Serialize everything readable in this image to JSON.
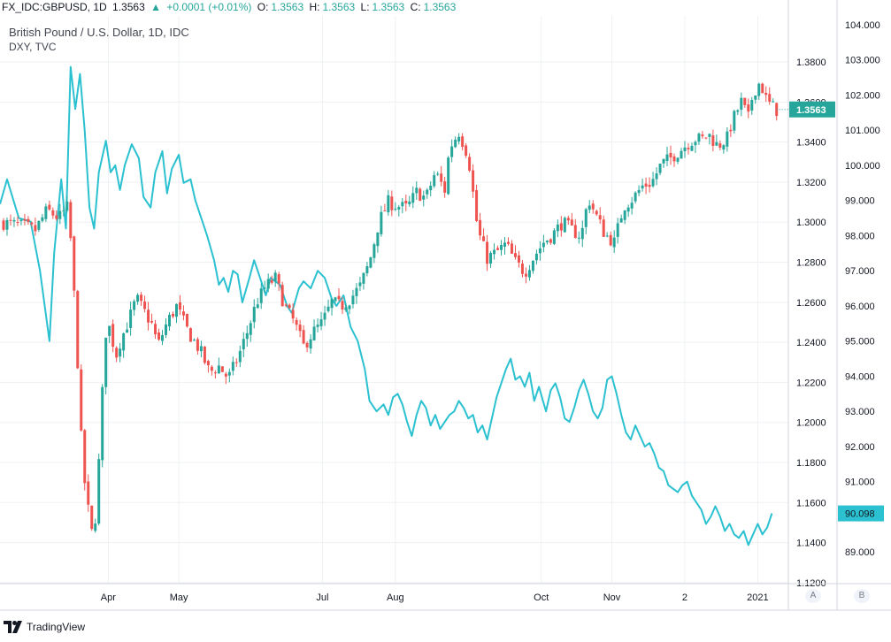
{
  "header": {
    "symbol": "FX_IDC:GBPUSD, 1D",
    "last": "1.3563",
    "change": "+0.0001 (+0.01%)",
    "o_label": "O:",
    "o": "1.3563",
    "h_label": "H:",
    "h": "1.3563",
    "l_label": "L:",
    "l": "1.3563",
    "c_label": "C:",
    "c": "1.3563"
  },
  "legend": {
    "main_series": "British Pound / U.S. Dollar, 1D, IDC",
    "overlay_series": "DXY, TVC"
  },
  "branding": {
    "logo_text": "TradingView"
  },
  "scale_buttons": {
    "a": "A",
    "b": "B"
  },
  "colors": {
    "up": "#26a69a",
    "down": "#ef5350",
    "dxy": "#2bc1d0",
    "grid": "#eef0f3",
    "axis_text": "#131722",
    "last_tag": "#26a69a",
    "dxy_tag": "#2bc1d0"
  },
  "chart_data": {
    "type": "candlestick+line",
    "x_ticks": [
      "Apr",
      "May",
      "Jul",
      "Aug",
      "Oct",
      "Nov",
      "2",
      "2021"
    ],
    "x_tick_days": [
      41,
      71,
      132,
      163,
      225,
      255,
      286,
      317
    ],
    "x_range_days": [
      -5,
      330
    ],
    "left_scale_gbpusd": {
      "ticks": [
        "1.3800",
        "1.3600",
        "1.3400",
        "1.3200",
        "1.3000",
        "1.2800",
        "1.2600",
        "1.2400",
        "1.2200",
        "1.2000",
        "1.1800",
        "1.1600",
        "1.1400",
        "1.1200"
      ],
      "range": [
        1.1195,
        1.403
      ],
      "last_tag": "1.3563"
    },
    "right_scale_dxy": {
      "ticks": [
        "104.000",
        "103.000",
        "102.000",
        "101.000",
        "100.000",
        "99.000",
        "98.000",
        "97.000",
        "96.000",
        "95.000",
        "94.000",
        "93.000",
        "92.000",
        "91.000",
        "90.000",
        "89.000"
      ],
      "range": [
        88.1,
        104.25
      ],
      "last_tag": "90.098"
    },
    "gbpusd_close_anchors": [
      [
        -5,
        1.3
      ],
      [
        5,
        1.298
      ],
      [
        10,
        1.296
      ],
      [
        15,
        1.306
      ],
      [
        20,
        1.302
      ],
      [
        24,
        1.308
      ],
      [
        26,
        1.275
      ],
      [
        28,
        1.23
      ],
      [
        30,
        1.18
      ],
      [
        32,
        1.16
      ],
      [
        34,
        1.145
      ],
      [
        36,
        1.155
      ],
      [
        38,
        1.205
      ],
      [
        40,
        1.245
      ],
      [
        42,
        1.248
      ],
      [
        44,
        1.232
      ],
      [
        46,
        1.24
      ],
      [
        50,
        1.252
      ],
      [
        53,
        1.262
      ],
      [
        56,
        1.256
      ],
      [
        60,
        1.248
      ],
      [
        62,
        1.238
      ],
      [
        66,
        1.25
      ],
      [
        70,
        1.258
      ],
      [
        75,
        1.245
      ],
      [
        80,
        1.236
      ],
      [
        84,
        1.225
      ],
      [
        88,
        1.228
      ],
      [
        92,
        1.222
      ],
      [
        96,
        1.232
      ],
      [
        100,
        1.245
      ],
      [
        104,
        1.26
      ],
      [
        108,
        1.268
      ],
      [
        112,
        1.272
      ],
      [
        116,
        1.258
      ],
      [
        120,
        1.25
      ],
      [
        124,
        1.238
      ],
      [
        128,
        1.245
      ],
      [
        132,
        1.25
      ],
      [
        136,
        1.26
      ],
      [
        140,
        1.258
      ],
      [
        144,
        1.262
      ],
      [
        148,
        1.268
      ],
      [
        152,
        1.28
      ],
      [
        156,
        1.3
      ],
      [
        160,
        1.31
      ],
      [
        164,
        1.308
      ],
      [
        168,
        1.307
      ],
      [
        172,
        1.315
      ],
      [
        176,
        1.312
      ],
      [
        180,
        1.325
      ],
      [
        184,
        1.316
      ],
      [
        186,
        1.337
      ],
      [
        190,
        1.345
      ],
      [
        194,
        1.333
      ],
      [
        198,
        1.296
      ],
      [
        202,
        1.282
      ],
      [
        206,
        1.285
      ],
      [
        210,
        1.289
      ],
      [
        214,
        1.28
      ],
      [
        218,
        1.275
      ],
      [
        222,
        1.283
      ],
      [
        226,
        1.29
      ],
      [
        230,
        1.294
      ],
      [
        234,
        1.3
      ],
      [
        238,
        1.296
      ],
      [
        242,
        1.293
      ],
      [
        245,
        1.312
      ],
      [
        248,
        1.304
      ],
      [
        252,
        1.294
      ],
      [
        256,
        1.29
      ],
      [
        260,
        1.308
      ],
      [
        264,
        1.312
      ],
      [
        268,
        1.318
      ],
      [
        272,
        1.32
      ],
      [
        276,
        1.329
      ],
      [
        280,
        1.332
      ],
      [
        284,
        1.336
      ],
      [
        288,
        1.34
      ],
      [
        291,
        1.342
      ],
      [
        293,
        1.341
      ],
      [
        296,
        1.344
      ],
      [
        300,
        1.338
      ],
      [
        304,
        1.342
      ],
      [
        306,
        1.35
      ],
      [
        310,
        1.36
      ],
      [
        313,
        1.352
      ],
      [
        315,
        1.365
      ],
      [
        318,
        1.37
      ],
      [
        321,
        1.36
      ],
      [
        325,
        1.356
      ]
    ],
    "dxy_anchors": [
      [
        -5,
        98.9
      ],
      [
        -2,
        99.6
      ],
      [
        3,
        98.5
      ],
      [
        8,
        98.4
      ],
      [
        12,
        97.0
      ],
      [
        16,
        95.0
      ],
      [
        18,
        97.5
      ],
      [
        21,
        99.6
      ],
      [
        23,
        98.2
      ],
      [
        25,
        102.8
      ],
      [
        27,
        101.6
      ],
      [
        29,
        102.6
      ],
      [
        31,
        101.0
      ],
      [
        33,
        98.8
      ],
      [
        35,
        98.2
      ],
      [
        37,
        99.8
      ],
      [
        40,
        100.7
      ],
      [
        42,
        99.8
      ],
      [
        44,
        100.0
      ],
      [
        46,
        99.3
      ],
      [
        48,
        100.0
      ],
      [
        51,
        100.6
      ],
      [
        54,
        100.2
      ],
      [
        56,
        99.1
      ],
      [
        59,
        98.8
      ],
      [
        61,
        99.8
      ],
      [
        64,
        100.4
      ],
      [
        66,
        99.2
      ],
      [
        68,
        99.9
      ],
      [
        71,
        100.3
      ],
      [
        73,
        99.5
      ],
      [
        76,
        99.6
      ],
      [
        78,
        99.0
      ],
      [
        80,
        98.6
      ],
      [
        83,
        98.0
      ],
      [
        86,
        97.3
      ],
      [
        88,
        96.6
      ],
      [
        90,
        96.8
      ],
      [
        92,
        96.4
      ],
      [
        94,
        97.0
      ],
      [
        96,
        96.9
      ],
      [
        98,
        96.1
      ],
      [
        101,
        96.8
      ],
      [
        103,
        97.3
      ],
      [
        105,
        96.9
      ],
      [
        108,
        96.3
      ],
      [
        110,
        96.8
      ],
      [
        114,
        96.6
      ],
      [
        117,
        96.0
      ],
      [
        119,
        95.8
      ],
      [
        122,
        96.5
      ],
      [
        124,
        96.7
      ],
      [
        127,
        96.5
      ],
      [
        130,
        97.0
      ],
      [
        133,
        96.8
      ],
      [
        136,
        96.2
      ],
      [
        138,
        96.0
      ],
      [
        141,
        96.3
      ],
      [
        144,
        95.4
      ],
      [
        147,
        95.0
      ],
      [
        150,
        94.2
      ],
      [
        152,
        93.3
      ],
      [
        155,
        93.0
      ],
      [
        158,
        93.2
      ],
      [
        160,
        92.9
      ],
      [
        162,
        93.4
      ],
      [
        164,
        93.5
      ],
      [
        166,
        93.2
      ],
      [
        168,
        92.7
      ],
      [
        170,
        92.3
      ],
      [
        172,
        92.9
      ],
      [
        174,
        93.3
      ],
      [
        176,
        93.1
      ],
      [
        178,
        92.6
      ],
      [
        180,
        92.9
      ],
      [
        182,
        92.5
      ],
      [
        184,
        92.7
      ],
      [
        186,
        92.9
      ],
      [
        188,
        93.0
      ],
      [
        190,
        93.3
      ],
      [
        192,
        93.1
      ],
      [
        194,
        92.8
      ],
      [
        196,
        92.9
      ],
      [
        198,
        92.4
      ],
      [
        200,
        92.6
      ],
      [
        202,
        92.2
      ],
      [
        204,
        92.8
      ],
      [
        206,
        93.4
      ],
      [
        208,
        93.8
      ],
      [
        210,
        94.2
      ],
      [
        212,
        94.5
      ],
      [
        214,
        93.9
      ],
      [
        216,
        94.0
      ],
      [
        218,
        93.7
      ],
      [
        220,
        94.1
      ],
      [
        222,
        93.3
      ],
      [
        224,
        93.7
      ],
      [
        227,
        93.0
      ],
      [
        229,
        93.6
      ],
      [
        231,
        93.8
      ],
      [
        233,
        93.4
      ],
      [
        235,
        92.8
      ],
      [
        237,
        92.7
      ],
      [
        239,
        93.1
      ],
      [
        241,
        93.6
      ],
      [
        243,
        93.9
      ],
      [
        245,
        93.5
      ],
      [
        247,
        93.0
      ],
      [
        249,
        92.8
      ],
      [
        251,
        93.1
      ],
      [
        253,
        93.9
      ],
      [
        255,
        94.0
      ],
      [
        257,
        93.5
      ],
      [
        259,
        92.9
      ],
      [
        261,
        92.4
      ],
      [
        263,
        92.2
      ],
      [
        265,
        92.6
      ],
      [
        267,
        92.3
      ],
      [
        269,
        92.0
      ],
      [
        271,
        92.1
      ],
      [
        273,
        91.8
      ],
      [
        275,
        91.4
      ],
      [
        277,
        91.3
      ],
      [
        279,
        90.9
      ],
      [
        281,
        90.8
      ],
      [
        283,
        90.7
      ],
      [
        285,
        90.9
      ],
      [
        287,
        91.0
      ],
      [
        289,
        90.6
      ],
      [
        291,
        90.4
      ],
      [
        293,
        90.2
      ],
      [
        295,
        89.8
      ],
      [
        297,
        90.0
      ],
      [
        299,
        90.3
      ],
      [
        301,
        90.0
      ],
      [
        303,
        89.6
      ],
      [
        305,
        89.8
      ],
      [
        307,
        89.5
      ],
      [
        309,
        89.4
      ],
      [
        311,
        89.6
      ],
      [
        313,
        89.2
      ],
      [
        315,
        89.5
      ],
      [
        317,
        89.8
      ],
      [
        319,
        89.5
      ],
      [
        321,
        89.7
      ],
      [
        323,
        90.1
      ]
    ]
  }
}
